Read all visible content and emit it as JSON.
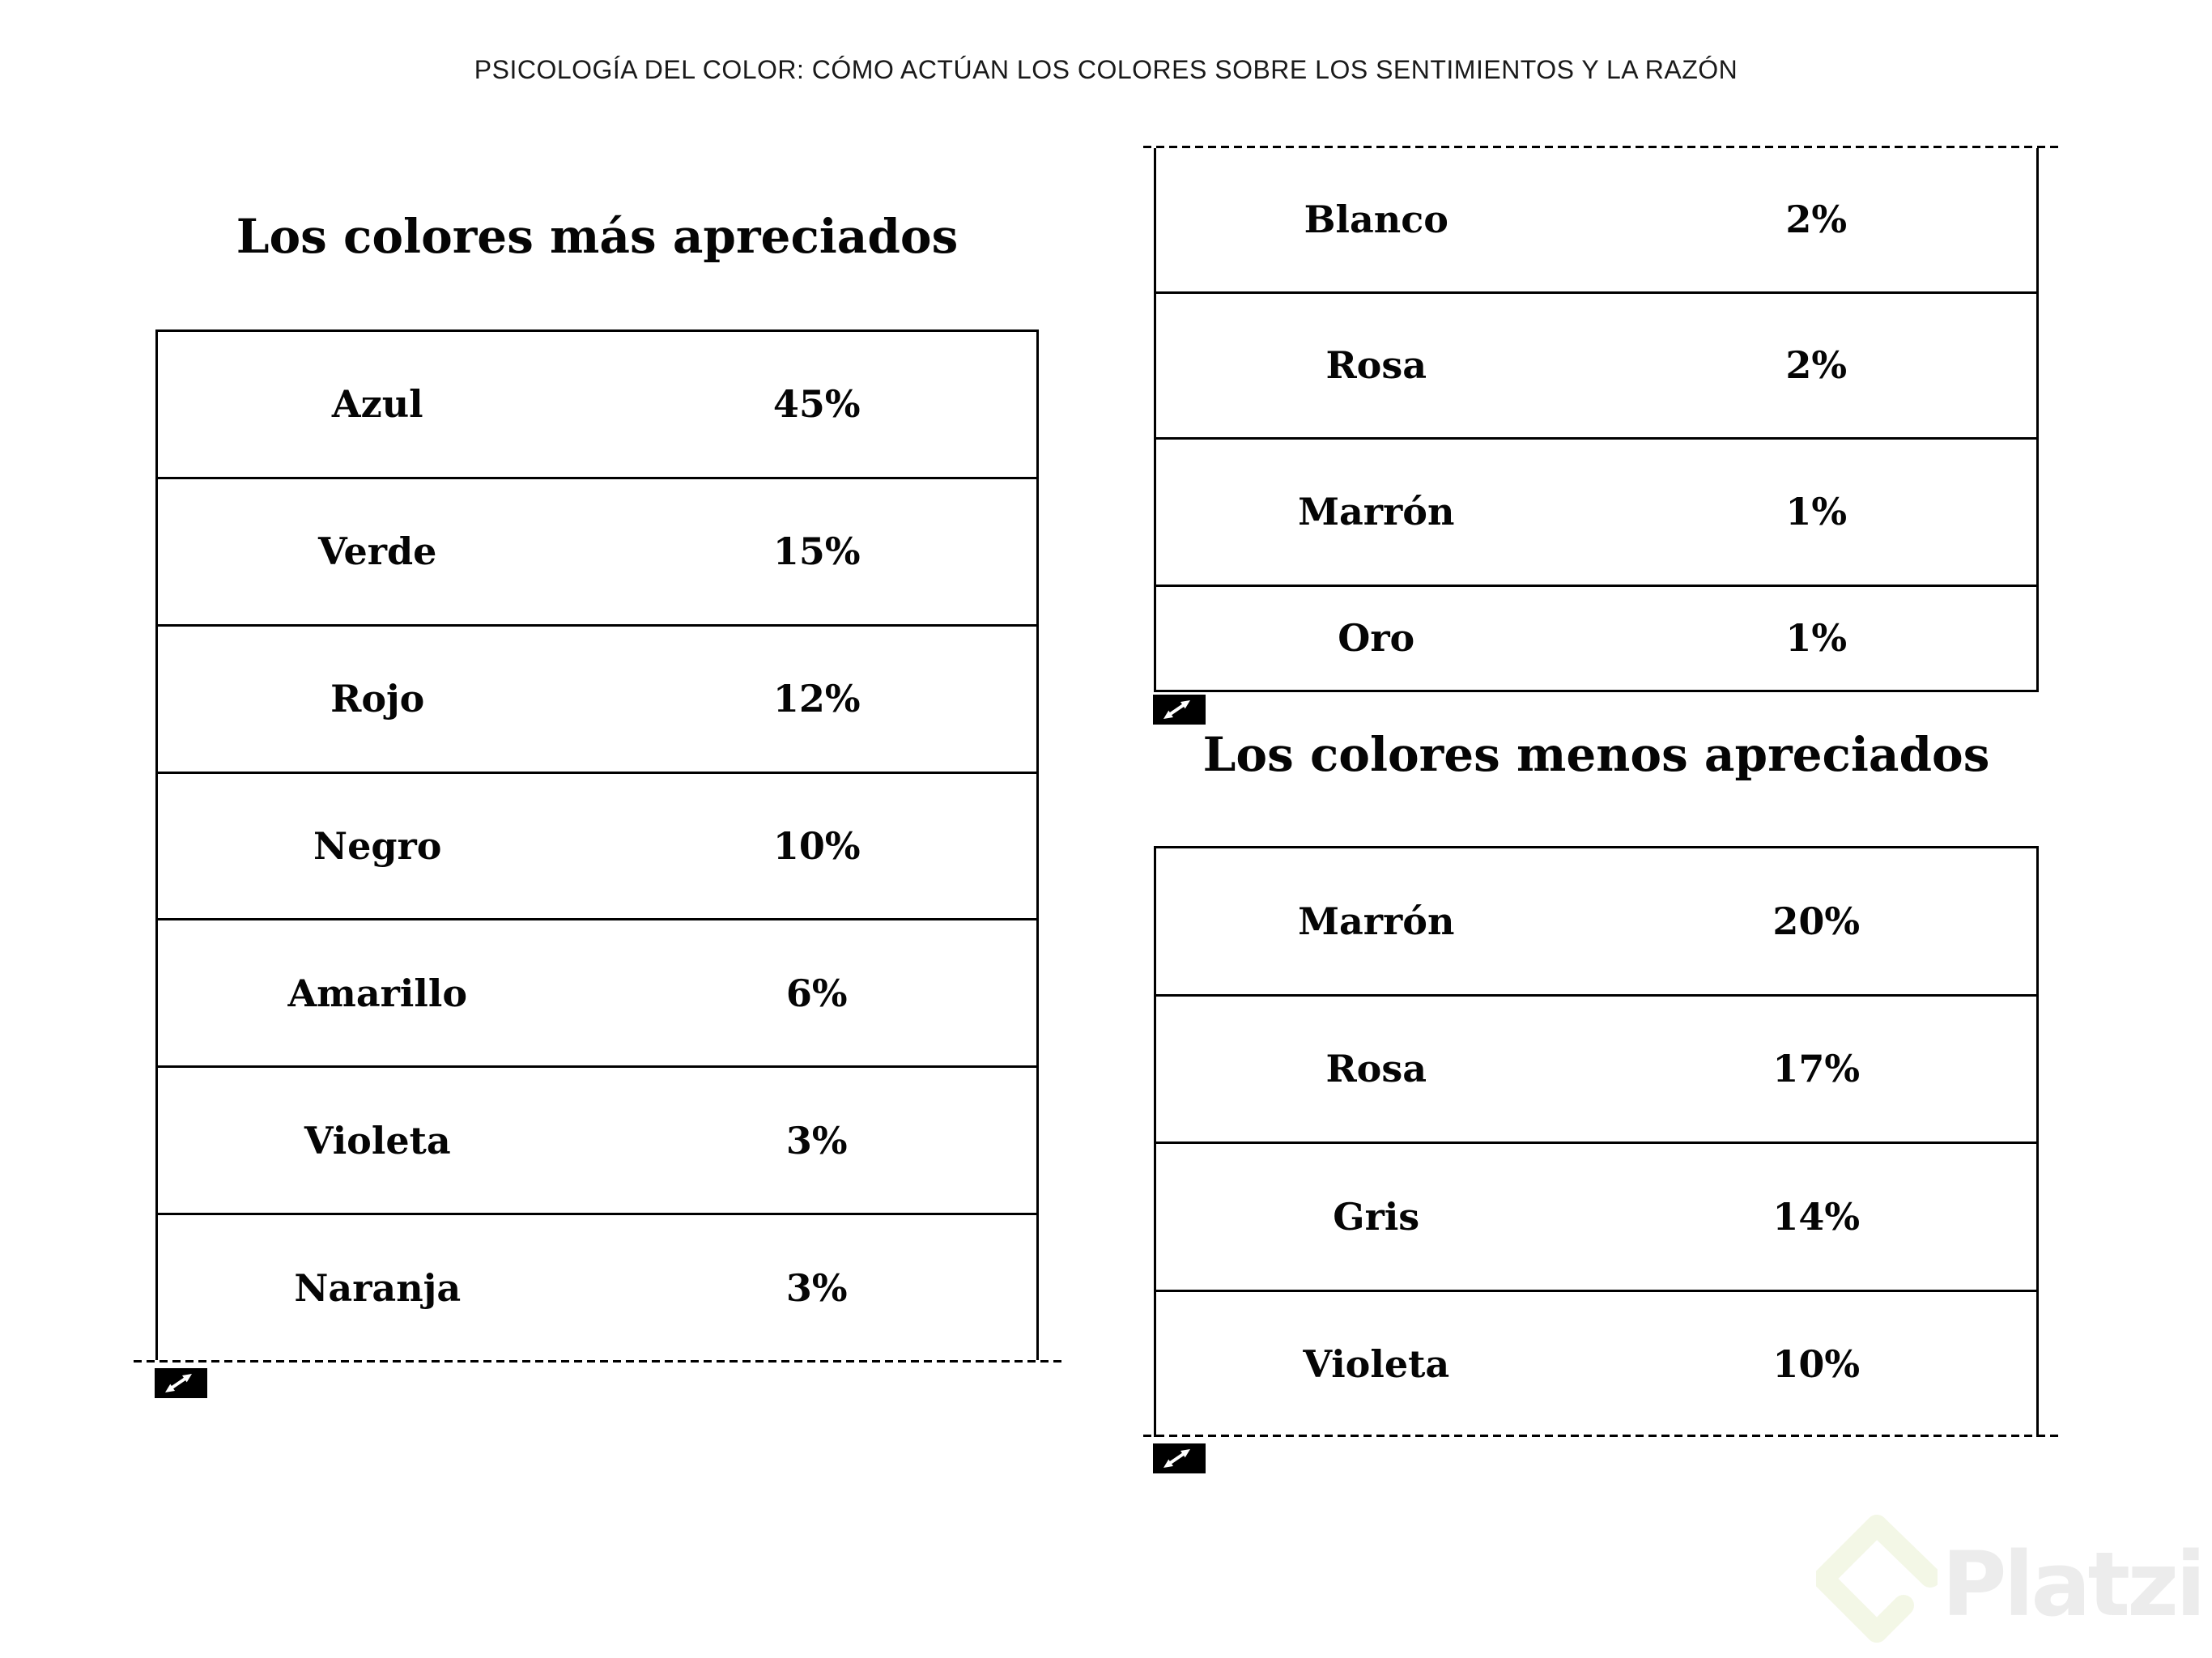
{
  "page_header": {
    "title": "PSICOLOGÍA DEL COLOR: CÓMO ACTÚAN LOS COLORES SOBRE LOS SENTIMIENTOS Y LA RAZÓN"
  },
  "most_appreciated": {
    "title": "Los colores más apreciados",
    "rows": [
      {
        "color": "Azul",
        "value": "45%"
      },
      {
        "color": "Verde",
        "value": "15%"
      },
      {
        "color": "Rojo",
        "value": "12%"
      },
      {
        "color": "Negro",
        "value": "10%"
      },
      {
        "color": "Amarillo",
        "value": "6%"
      },
      {
        "color": "Violeta",
        "value": "3%"
      },
      {
        "color": "Naranja",
        "value": "3%"
      }
    ],
    "continuation_rows": [
      {
        "color": "Blanco",
        "value": "2%"
      },
      {
        "color": "Rosa",
        "value": "2%"
      },
      {
        "color": "Marrón",
        "value": "1%"
      },
      {
        "color": "Oro",
        "value": "1%"
      }
    ]
  },
  "least_appreciated": {
    "title": "Los colores menos apreciados",
    "rows": [
      {
        "color": "Marrón",
        "value": "20%"
      },
      {
        "color": "Rosa",
        "value": "17%"
      },
      {
        "color": "Gris",
        "value": "14%"
      },
      {
        "color": "Violeta",
        "value": "10%"
      }
    ]
  },
  "watermark": {
    "brand": "Platzi"
  },
  "colors": {
    "ink": "#000000",
    "background": "#ffffff",
    "watermark_text": "#ececec",
    "watermark_logo": "#f3f7e6"
  }
}
